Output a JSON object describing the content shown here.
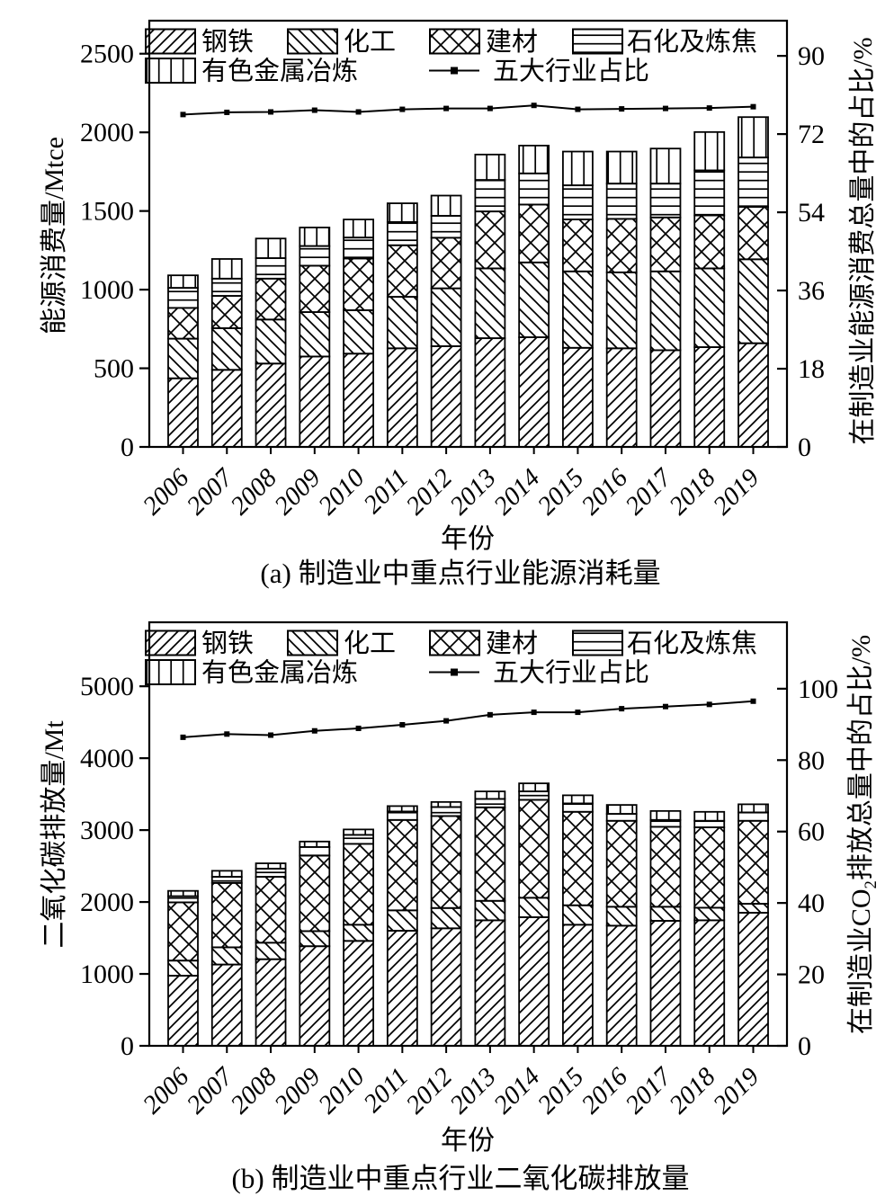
{
  "page": {
    "background": "#ffffff",
    "ink_color": "#000000",
    "description_visible_text_only": true
  },
  "chart_data": [
    {
      "type": "bar",
      "stacked": true,
      "caption": "(a) 制造业中重点行业能源消耗量",
      "x_axis": {
        "label": "年份",
        "categories": [
          "2006",
          "2007",
          "2008",
          "2009",
          "2010",
          "2011",
          "2012",
          "2013",
          "2014",
          "2015",
          "2016",
          "2017",
          "2018",
          "2019"
        ]
      },
      "left_axis": {
        "label": "能源消费量/Mtce",
        "ticks": [
          0,
          500,
          1000,
          1500,
          2000,
          2500
        ],
        "range": [
          0,
          2710
        ]
      },
      "right_axis": {
        "label": "在制造业能源消费总量中的占比/%",
        "ticks": [
          0,
          18,
          36,
          54,
          72,
          90
        ],
        "range": [
          0,
          98.1
        ]
      },
      "series": [
        {
          "name": "钢铁",
          "hatch": "diag-up",
          "values": [
            436,
            490,
            530,
            575,
            593,
            627,
            640,
            691,
            697,
            630,
            627,
            615,
            634,
            659
          ]
        },
        {
          "name": "化工",
          "hatch": "diag-down",
          "values": [
            252,
            265,
            280,
            282,
            276,
            327,
            368,
            444,
            476,
            486,
            483,
            501,
            501,
            534
          ]
        },
        {
          "name": "建材",
          "hatch": "cross",
          "values": [
            196,
            205,
            260,
            295,
            329,
            328,
            322,
            362,
            368,
            330,
            340,
            343,
            337,
            333
          ]
        },
        {
          "name": "石化及炼焦",
          "hatch": "horizontal",
          "values": [
            127,
            110,
            130,
            125,
            133,
            148,
            139,
            200,
            198,
            217,
            224,
            215,
            286,
            314
          ]
        },
        {
          "name": "有色金属冶炼",
          "hatch": "vertical",
          "values": [
            80,
            125,
            125,
            118,
            115,
            119,
            129,
            162,
            177,
            215,
            204,
            223,
            244,
            257
          ]
        }
      ],
      "line": {
        "name": "五大行业占比",
        "axis": "right",
        "values": [
          76.5,
          77.0,
          77.1,
          77.5,
          77.1,
          77.7,
          77.9,
          77.9,
          78.6,
          77.7,
          77.8,
          77.9,
          78.0,
          78.3
        ]
      },
      "grid": false,
      "legend_position": "inside-top-left"
    },
    {
      "type": "bar",
      "stacked": true,
      "caption": "(b) 制造业中重点行业二氧化碳排放量",
      "x_axis": {
        "label": "年份",
        "categories": [
          "2006",
          "2007",
          "2008",
          "2009",
          "2010",
          "2011",
          "2012",
          "2013",
          "2014",
          "2015",
          "2016",
          "2017",
          "2018",
          "2019"
        ]
      },
      "left_axis": {
        "label": "二氧化碳排放量/Mt",
        "ticks": [
          0,
          1000,
          2000,
          3000,
          4000,
          5000
        ],
        "range": [
          0,
          5890
        ]
      },
      "right_axis": {
        "label_parts": [
          "在制造业CO",
          "2",
          "排放总量中的占比/%"
        ],
        "ticks": [
          0,
          20,
          40,
          60,
          80,
          100
        ],
        "range": [
          0,
          118.6
        ]
      },
      "series": [
        {
          "name": "钢铁",
          "hatch": "diag-up",
          "values": [
            975,
            1130,
            1204,
            1385,
            1459,
            1600,
            1634,
            1746,
            1788,
            1684,
            1671,
            1738,
            1746,
            1850
          ]
        },
        {
          "name": "化工",
          "hatch": "diag-down",
          "values": [
            210,
            240,
            230,
            210,
            225,
            284,
            282,
            270,
            271,
            270,
            263,
            196,
            175,
            125
          ]
        },
        {
          "name": "建材",
          "hatch": "cross",
          "values": [
            810,
            895,
            916,
            1050,
            1125,
            1257,
            1280,
            1300,
            1362,
            1300,
            1195,
            1112,
            1117,
            1154
          ]
        },
        {
          "name": "石化及炼焦",
          "hatch": "horizontal",
          "values": [
            85,
            85,
            113,
            120,
            125,
            118,
            125,
            118,
            117,
            117,
            96,
            95,
            91,
            117
          ]
        },
        {
          "name": "有色金属冶炼",
          "hatch": "vertical",
          "values": [
            75,
            84,
            75,
            76,
            75,
            75,
            70,
            104,
            112,
            113,
            125,
            125,
            125,
            113
          ]
        }
      ],
      "line": {
        "name": "五大行业占比",
        "axis": "right",
        "values": [
          86.4,
          87.3,
          87.0,
          88.2,
          88.9,
          89.9,
          91.0,
          92.7,
          93.4,
          93.4,
          94.4,
          95.0,
          95.6,
          96.5
        ]
      },
      "grid": false,
      "legend_position": "inside-top-left"
    }
  ]
}
